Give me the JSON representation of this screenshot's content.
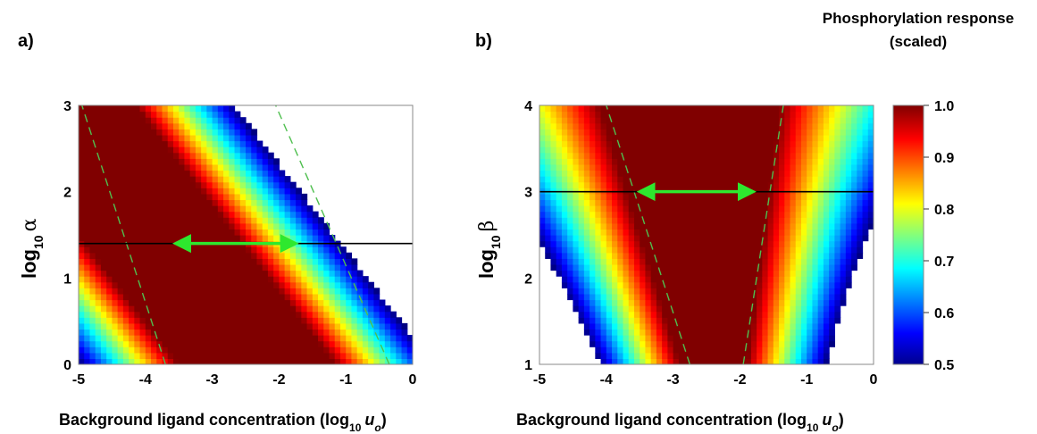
{
  "colorbar": {
    "title_line1": "Phosphorylation response",
    "title_line2": "(scaled)",
    "range": [
      0.5,
      1.0
    ],
    "ticks": [
      "0.5",
      "0.6",
      "0.7",
      "0.8",
      "0.9",
      "1.0"
    ],
    "colormap": "jet"
  },
  "chart_data": [
    {
      "type": "heatmap",
      "panel_label": "a)",
      "xlabel_text": "Background ligand concentration (log",
      "xlabel_sub": "10",
      "xlabel_var": "u",
      "xlabel_var_sub": "o",
      "xlabel_close": ")",
      "ylabel_text": "log",
      "ylabel_sub": "10",
      "ylabel_symbol": "α",
      "xlim": [
        -5,
        0
      ],
      "ylim": [
        0,
        3
      ],
      "xticks": [
        "-5",
        "-4",
        "-3",
        "-2",
        "-1",
        "0"
      ],
      "yticks": [
        "0",
        "1",
        "2",
        "3"
      ],
      "colormap": "jet",
      "value_range": [
        0.5,
        1.0
      ],
      "peak_band": {
        "center_at_y0": -2.6,
        "slope_dx_per_dy": -1.0,
        "half_width_log": 0.9
      },
      "horizontal_line_y": 1.4,
      "arrow": {
        "y": 1.4,
        "x_from": -3.55,
        "x_to": -1.75,
        "double_headed": true,
        "color": "#2ee82e"
      },
      "dashed_contours": [
        {
          "x_at_y0": -3.7,
          "x_at_y3": -4.95
        },
        {
          "x_at_y0": -0.35,
          "x_at_y3": -2.05
        }
      ]
    },
    {
      "type": "heatmap",
      "panel_label": "b)",
      "xlabel_text": "Background ligand concentration (log",
      "xlabel_sub": "10",
      "xlabel_var": "u",
      "xlabel_var_sub": "o",
      "xlabel_close": ")",
      "ylabel_text": "log",
      "ylabel_sub": "10",
      "ylabel_symbol": "β",
      "xlim": [
        -5,
        0
      ],
      "ylim": [
        1,
        4
      ],
      "xticks": [
        "-5",
        "-4",
        "-3",
        "-2",
        "-1",
        "0"
      ],
      "yticks": [
        "1",
        "2",
        "3",
        "4"
      ],
      "colormap": "jet",
      "value_range": [
        0.5,
        1.0
      ],
      "horizontal_line_y": 3.0,
      "arrow": {
        "y": 3.0,
        "x_from": -3.5,
        "x_to": -1.8,
        "double_headed": true,
        "color": "#2ee82e"
      },
      "dashed_contours": [
        {
          "x_at_y1": -2.75,
          "x_at_y4": -4.0
        },
        {
          "x_at_y1": -1.95,
          "x_at_y4": -1.35
        }
      ]
    }
  ]
}
